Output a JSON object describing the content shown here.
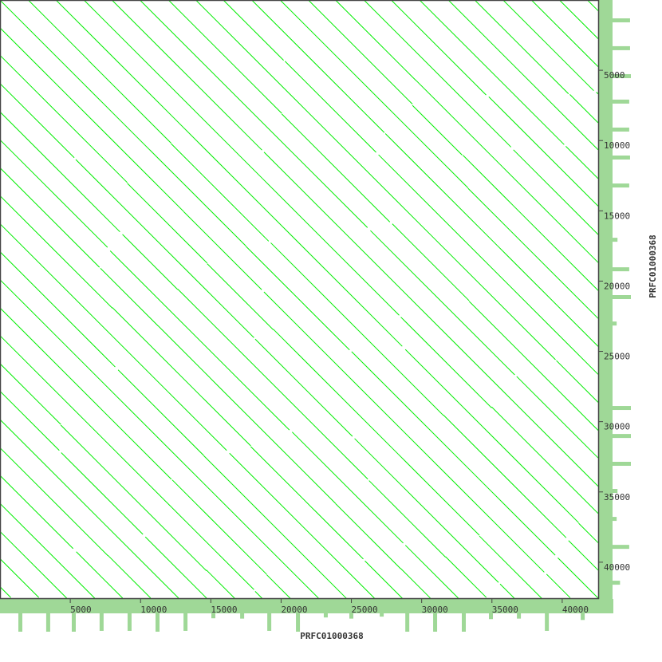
{
  "chart_data": {
    "type": "dotplot",
    "xlabel": "PRFC01000368",
    "ylabel": "PRFC01000368",
    "xlim": [
      0,
      42560
    ],
    "ylim": [
      0,
      42560
    ],
    "y_direction": "top-to-bottom",
    "x_ticks": [
      5000,
      10000,
      15000,
      20000,
      25000,
      30000,
      35000,
      40000
    ],
    "y_ticks": [
      5000,
      10000,
      15000,
      20000,
      25000,
      30000,
      35000,
      40000
    ],
    "grid": false,
    "repeat_period_bp": 1990,
    "match_color": "#00ee00",
    "coverage_color": "#9fd897",
    "axis_color": "#444444",
    "x_coverage_spikes": [
      {
        "pos": 1420,
        "level": 1.0
      },
      {
        "pos": 3400,
        "level": 1.0
      },
      {
        "pos": 5220,
        "level": 1.0
      },
      {
        "pos": 7200,
        "level": 0.95
      },
      {
        "pos": 9190,
        "level": 0.95
      },
      {
        "pos": 11180,
        "level": 1.0
      },
      {
        "pos": 13170,
        "level": 0.95
      },
      {
        "pos": 15150,
        "level": 0.2
      },
      {
        "pos": 17200,
        "level": 0.22
      },
      {
        "pos": 19130,
        "level": 0.95
      },
      {
        "pos": 21170,
        "level": 1.0
      },
      {
        "pos": 23150,
        "level": 0.15
      },
      {
        "pos": 24970,
        "level": 0.22
      },
      {
        "pos": 27130,
        "level": 0.1
      },
      {
        "pos": 28950,
        "level": 1.0
      },
      {
        "pos": 30930,
        "level": 1.0
      },
      {
        "pos": 32970,
        "level": 1.0
      },
      {
        "pos": 34900,
        "level": 0.25
      },
      {
        "pos": 36890,
        "level": 0.22
      },
      {
        "pos": 38880,
        "level": 0.95
      },
      {
        "pos": 41430,
        "level": 0.3
      }
    ],
    "y_coverage_spikes": [
      {
        "pos": 1420,
        "level": 0.95
      },
      {
        "pos": 3400,
        "level": 0.95
      },
      {
        "pos": 5390,
        "level": 1.0
      },
      {
        "pos": 7200,
        "level": 0.9
      },
      {
        "pos": 9190,
        "level": 0.9
      },
      {
        "pos": 11180,
        "level": 0.95
      },
      {
        "pos": 13170,
        "level": 0.9
      },
      {
        "pos": 17030,
        "level": 0.2
      },
      {
        "pos": 19130,
        "level": 0.9
      },
      {
        "pos": 21110,
        "level": 1.0
      },
      {
        "pos": 22990,
        "level": 0.15
      },
      {
        "pos": 29000,
        "level": 1.0
      },
      {
        "pos": 30990,
        "level": 1.0
      },
      {
        "pos": 32970,
        "level": 1.0
      },
      {
        "pos": 34900,
        "level": 0.2
      },
      {
        "pos": 36890,
        "level": 0.15
      },
      {
        "pos": 38880,
        "level": 0.9
      },
      {
        "pos": 41430,
        "level": 0.35
      }
    ]
  }
}
